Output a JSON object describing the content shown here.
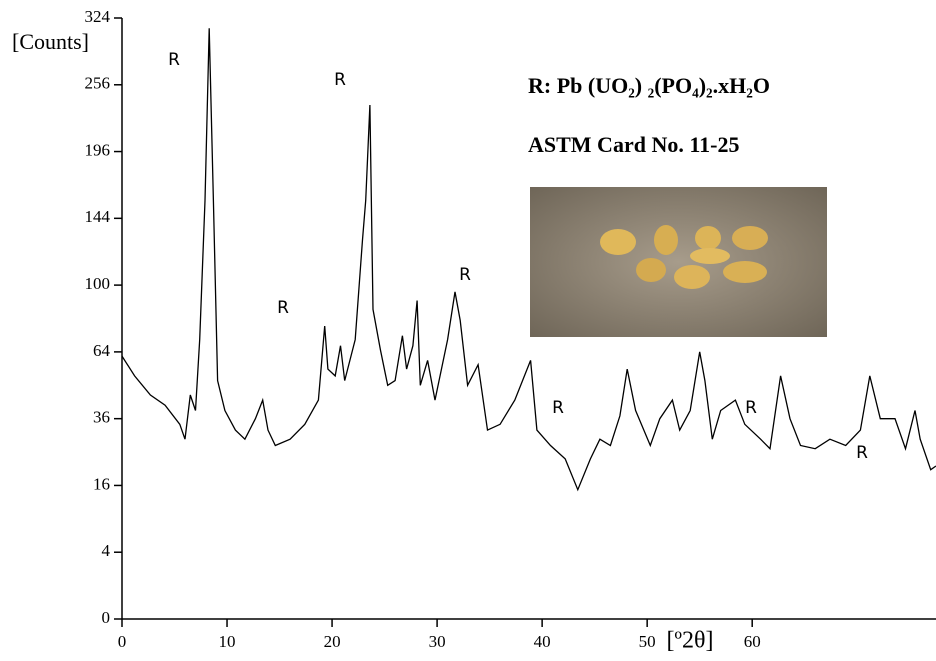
{
  "chart_data": {
    "type": "line",
    "y_label": "[Counts]",
    "x_label": "[º2θ]",
    "legend_lines": [
      "R:  Pb (UO₂) ₂(PO₄)₂.xH₂O",
      "ASTM Card No. 11-25"
    ],
    "annotations": [
      "R",
      "R",
      "R",
      "R",
      "R",
      "R",
      "R"
    ],
    "color": "#000000",
    "yscale": "sqrt",
    "xlim": [
      0,
      77.5
    ],
    "ylim": [
      0,
      324
    ],
    "xticks": [
      0,
      10,
      20,
      30,
      40,
      50,
      60
    ],
    "yticks": [
      0,
      4,
      16,
      36,
      64,
      100,
      144,
      196,
      256,
      324
    ],
    "x": [
      0,
      1.2,
      2.7,
      4.1,
      5.5,
      6.0,
      6.5,
      7.0,
      7.4,
      7.9,
      8.3,
      8.7,
      9.1,
      9.8,
      10.8,
      11.7,
      12.7,
      13.4,
      13.9,
      14.6,
      16.0,
      17.4,
      18.7,
      19.3,
      19.6,
      20.3,
      20.8,
      21.2,
      22.2,
      22.9,
      23.2,
      23.6,
      23.9,
      24.6,
      25.3,
      26.0,
      26.7,
      27.1,
      27.7,
      28.1,
      28.4,
      29.1,
      29.8,
      31.0,
      31.7,
      32.2,
      32.9,
      33.9,
      34.8,
      36.0,
      37.4,
      38.9,
      39.5,
      40.8,
      42.2,
      43.4,
      44.6,
      45.5,
      46.5,
      47.4,
      48.1,
      48.9,
      50.3,
      51.2,
      52.4,
      53.1,
      54.1,
      55.0,
      55.5,
      56.2,
      57.0,
      58.4,
      59.3,
      60.8,
      61.7,
      62.7,
      63.6,
      64.6,
      66.0,
      67.4,
      68.9,
      70.3,
      71.2,
      72.2,
      73.6,
      74.6,
      75.5,
      76.0,
      77.0,
      77.5
    ],
    "values": [
      62,
      53,
      45,
      41,
      34,
      29,
      45,
      39,
      70,
      157,
      313,
      157,
      51,
      39,
      32,
      29,
      36,
      43,
      32,
      27,
      29,
      34,
      43,
      77,
      56,
      53,
      67,
      51,
      70,
      129,
      157,
      237,
      86,
      65,
      49,
      51,
      72,
      56,
      67,
      91,
      49,
      60,
      43,
      70,
      96,
      80,
      49,
      58,
      32,
      34,
      43,
      60,
      32,
      27,
      23,
      15,
      23,
      29,
      27,
      37,
      56,
      39,
      27,
      36,
      43,
      32,
      39,
      64,
      51,
      29,
      39,
      43,
      34,
      29,
      26,
      53,
      36,
      27,
      26,
      29,
      27,
      32,
      53,
      36,
      36,
      26,
      39,
      29,
      20,
      21
    ]
  }
}
